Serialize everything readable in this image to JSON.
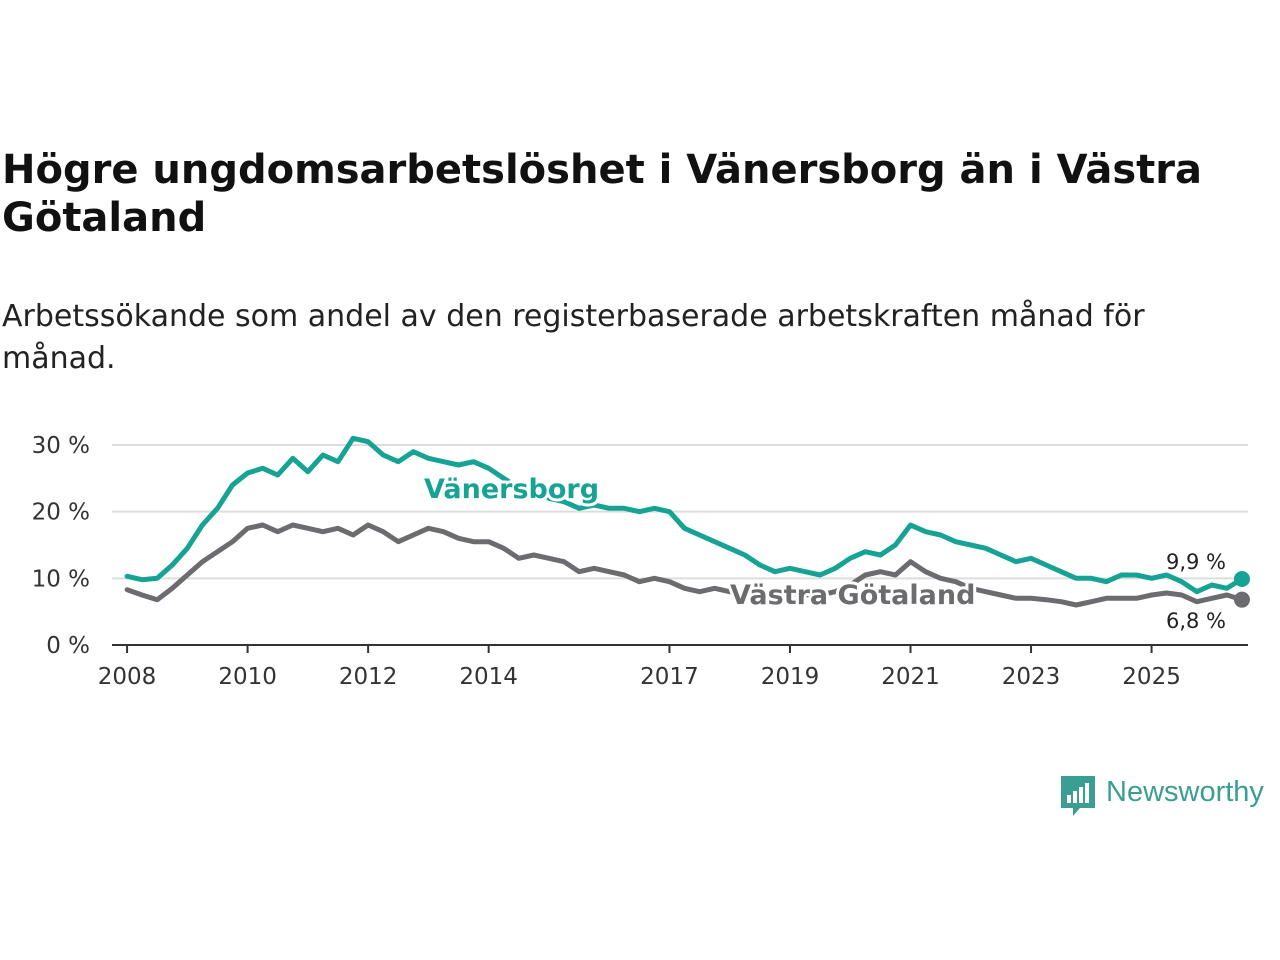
{
  "title": "Högre ungdomsarbetslöshet i Vänersborg än i Västra Götaland",
  "subtitle": "Arbetssökande som andel av den registerbaserade arbetskraften månad för månad.",
  "brand": "Newsworthy",
  "colors": {
    "teal": "#16a394",
    "gray": "#6b6b70",
    "grid": "#dddddd",
    "axis": "#333333",
    "brand": "#3a9e93"
  },
  "chart_data": {
    "type": "line",
    "title": "Högre ungdomsarbetslöshet i Vänersborg än i Västra Götaland",
    "xlabel": "",
    "ylabel": "",
    "xlim": [
      2007.75,
      2026.6
    ],
    "ylim": [
      0,
      30
    ],
    "xticks": [
      2008,
      2010,
      2012,
      2014,
      2017,
      2019,
      2021,
      2023,
      2025
    ],
    "xtick_labels": [
      "2008",
      "2010",
      "2012",
      "2014",
      "2017",
      "2019",
      "2021",
      "2023",
      "2025"
    ],
    "yticks": [
      0,
      10,
      20,
      30
    ],
    "ytick_labels": [
      "0 %",
      "10 %",
      "20 %",
      "30 %"
    ],
    "grid": true,
    "series": [
      {
        "name": "Vänersborg",
        "color": "#16a394",
        "end_label": "9,9 %",
        "points": [
          [
            2008.0,
            10.3
          ],
          [
            2008.25,
            9.8
          ],
          [
            2008.5,
            10.0
          ],
          [
            2008.75,
            12.0
          ],
          [
            2009.0,
            14.5
          ],
          [
            2009.25,
            18.0
          ],
          [
            2009.5,
            20.5
          ],
          [
            2009.75,
            24.0
          ],
          [
            2010.0,
            25.8
          ],
          [
            2010.25,
            26.5
          ],
          [
            2010.5,
            25.5
          ],
          [
            2010.75,
            28.0
          ],
          [
            2011.0,
            26.0
          ],
          [
            2011.25,
            28.5
          ],
          [
            2011.5,
            27.5
          ],
          [
            2011.75,
            31.0
          ],
          [
            2012.0,
            30.5
          ],
          [
            2012.25,
            28.5
          ],
          [
            2012.5,
            27.5
          ],
          [
            2012.75,
            29.0
          ],
          [
            2013.0,
            28.0
          ],
          [
            2013.25,
            27.5
          ],
          [
            2013.5,
            27.0
          ],
          [
            2013.75,
            27.5
          ],
          [
            2014.0,
            26.5
          ],
          [
            2014.25,
            25.0
          ],
          [
            2014.5,
            23.5
          ],
          [
            2014.75,
            24.0
          ],
          [
            2015.0,
            22.0
          ],
          [
            2015.25,
            21.5
          ],
          [
            2015.5,
            20.5
          ],
          [
            2015.75,
            21.0
          ],
          [
            2016.0,
            20.5
          ],
          [
            2016.25,
            20.5
          ],
          [
            2016.5,
            20.0
          ],
          [
            2016.75,
            20.5
          ],
          [
            2017.0,
            20.0
          ],
          [
            2017.25,
            17.5
          ],
          [
            2017.5,
            16.5
          ],
          [
            2017.75,
            15.5
          ],
          [
            2018.0,
            14.5
          ],
          [
            2018.25,
            13.5
          ],
          [
            2018.5,
            12.0
          ],
          [
            2018.75,
            11.0
          ],
          [
            2019.0,
            11.5
          ],
          [
            2019.25,
            11.0
          ],
          [
            2019.5,
            10.5
          ],
          [
            2019.75,
            11.5
          ],
          [
            2020.0,
            13.0
          ],
          [
            2020.25,
            14.0
          ],
          [
            2020.5,
            13.5
          ],
          [
            2020.75,
            15.0
          ],
          [
            2021.0,
            18.0
          ],
          [
            2021.25,
            17.0
          ],
          [
            2021.5,
            16.5
          ],
          [
            2021.75,
            15.5
          ],
          [
            2022.0,
            15.0
          ],
          [
            2022.25,
            14.5
          ],
          [
            2022.5,
            13.5
          ],
          [
            2022.75,
            12.5
          ],
          [
            2023.0,
            13.0
          ],
          [
            2023.25,
            12.0
          ],
          [
            2023.5,
            11.0
          ],
          [
            2023.75,
            10.0
          ],
          [
            2024.0,
            10.0
          ],
          [
            2024.25,
            9.5
          ],
          [
            2024.5,
            10.5
          ],
          [
            2024.75,
            10.5
          ],
          [
            2025.0,
            10.0
          ],
          [
            2025.25,
            10.5
          ],
          [
            2025.5,
            9.5
          ],
          [
            2025.75,
            8.0
          ],
          [
            2026.0,
            9.0
          ],
          [
            2026.25,
            8.5
          ],
          [
            2026.5,
            9.9
          ]
        ]
      },
      {
        "name": "Västra Götaland",
        "color": "#6b6b70",
        "end_label": "6,8 %",
        "points": [
          [
            2008.0,
            8.3
          ],
          [
            2008.25,
            7.5
          ],
          [
            2008.5,
            6.8
          ],
          [
            2008.75,
            8.5
          ],
          [
            2009.0,
            10.5
          ],
          [
            2009.25,
            12.5
          ],
          [
            2009.5,
            14.0
          ],
          [
            2009.75,
            15.5
          ],
          [
            2010.0,
            17.5
          ],
          [
            2010.25,
            18.0
          ],
          [
            2010.5,
            17.0
          ],
          [
            2010.75,
            18.0
          ],
          [
            2011.0,
            17.5
          ],
          [
            2011.25,
            17.0
          ],
          [
            2011.5,
            17.5
          ],
          [
            2011.75,
            16.5
          ],
          [
            2012.0,
            18.0
          ],
          [
            2012.25,
            17.0
          ],
          [
            2012.5,
            15.5
          ],
          [
            2012.75,
            16.5
          ],
          [
            2013.0,
            17.5
          ],
          [
            2013.25,
            17.0
          ],
          [
            2013.5,
            16.0
          ],
          [
            2013.75,
            15.5
          ],
          [
            2014.0,
            15.5
          ],
          [
            2014.25,
            14.5
          ],
          [
            2014.5,
            13.0
          ],
          [
            2014.75,
            13.5
          ],
          [
            2015.0,
            13.0
          ],
          [
            2015.25,
            12.5
          ],
          [
            2015.5,
            11.0
          ],
          [
            2015.75,
            11.5
          ],
          [
            2016.0,
            11.0
          ],
          [
            2016.25,
            10.5
          ],
          [
            2016.5,
            9.5
          ],
          [
            2016.75,
            10.0
          ],
          [
            2017.0,
            9.5
          ],
          [
            2017.25,
            8.5
          ],
          [
            2017.5,
            8.0
          ],
          [
            2017.75,
            8.5
          ],
          [
            2018.0,
            8.0
          ],
          [
            2018.25,
            7.8
          ],
          [
            2018.5,
            7.5
          ],
          [
            2018.75,
            7.5
          ],
          [
            2019.0,
            7.8
          ],
          [
            2019.25,
            7.5
          ],
          [
            2019.5,
            7.5
          ],
          [
            2019.75,
            8.0
          ],
          [
            2020.0,
            9.0
          ],
          [
            2020.25,
            10.5
          ],
          [
            2020.5,
            11.0
          ],
          [
            2020.75,
            10.5
          ],
          [
            2021.0,
            12.5
          ],
          [
            2021.25,
            11.0
          ],
          [
            2021.5,
            10.0
          ],
          [
            2021.75,
            9.5
          ],
          [
            2022.0,
            8.5
          ],
          [
            2022.25,
            8.0
          ],
          [
            2022.5,
            7.5
          ],
          [
            2022.75,
            7.0
          ],
          [
            2023.0,
            7.0
          ],
          [
            2023.25,
            6.8
          ],
          [
            2023.5,
            6.5
          ],
          [
            2023.75,
            6.0
          ],
          [
            2024.0,
            6.5
          ],
          [
            2024.25,
            7.0
          ],
          [
            2024.5,
            7.0
          ],
          [
            2024.75,
            7.0
          ],
          [
            2025.0,
            7.5
          ],
          [
            2025.25,
            7.8
          ],
          [
            2025.5,
            7.5
          ],
          [
            2025.75,
            6.5
          ],
          [
            2026.0,
            7.0
          ],
          [
            2026.25,
            7.5
          ],
          [
            2026.5,
            6.8
          ]
        ]
      }
    ]
  }
}
